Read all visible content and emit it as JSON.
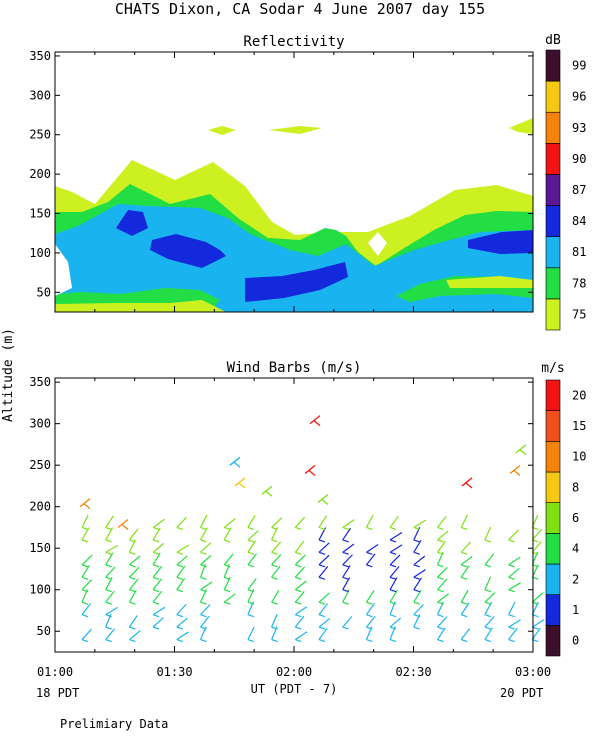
{
  "page": {
    "title": "CHATS Dixon, CA  Sodar   4 June 2007  day 155",
    "footer_left": "18 PDT",
    "footer_right": "20 PDT",
    "note": "Prelimiary Data",
    "y_axis_label": "Altitude (m)",
    "x_axis_label": "UT  (PDT - 7)"
  },
  "chart_data": [
    {
      "type": "heatmap",
      "title": "Reflectivity",
      "ylabel": "Altitude (m)",
      "ylim": [
        25,
        355
      ],
      "yticks": [
        50,
        100,
        150,
        200,
        250,
        300,
        350
      ],
      "xlim": [
        "01:00",
        "03:00"
      ],
      "xticks": [
        "01:00",
        "01:30",
        "02:00",
        "02:30",
        "03:00"
      ],
      "colorbar": {
        "unit": "dB",
        "levels": [
          75,
          78,
          81,
          84,
          87,
          90,
          93,
          96,
          99
        ],
        "colors": [
          "#ccf020",
          "#22dd44",
          "#19b4f0",
          "#1428dc",
          "#5a1896",
          "#f01414",
          "#f5820a",
          "#f5c814",
          "#3c0f2d"
        ]
      },
      "contour_fill_colors": {
        "75": "#ccf020",
        "78": "#22dd44",
        "81": "#19b4f0",
        "84": "#1428dc"
      }
    },
    {
      "type": "scatter",
      "title": "Wind Barbs (m/s)",
      "ylabel": "Altitude (m)",
      "ylim": [
        25,
        355
      ],
      "yticks": [
        50,
        100,
        150,
        200,
        250,
        300,
        350
      ],
      "xlim": [
        "01:00",
        "03:00"
      ],
      "xticks": [
        "01:00",
        "01:30",
        "02:00",
        "02:30",
        "03:00"
      ],
      "colorbar": {
        "unit": "m/s",
        "levels": [
          0,
          1,
          2,
          4,
          6,
          8,
          10,
          15,
          20
        ],
        "colors": [
          "#3c0f2d",
          "#1428dc",
          "#19b4f0",
          "#22dd44",
          "#7ee014",
          "#f5c814",
          "#f5820a",
          "#f0501e",
          "#f01414"
        ]
      }
    }
  ]
}
